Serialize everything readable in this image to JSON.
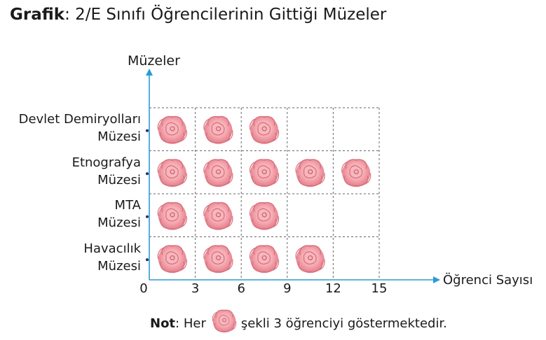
{
  "title": {
    "bold": "Grafik",
    "rest": ": 2/E Sınıfı Öğrencilerinin Gittiği Müzeler"
  },
  "chart_data": {
    "type": "pictograph",
    "ylabel": "Müzeler",
    "xlabel": "Öğrenci Sayısı",
    "categories": [
      [
        "Devlet Demiryolları",
        "Müzesi"
      ],
      [
        "Etnografya",
        "Müzesi"
      ],
      [
        "MTA",
        "Müzesi"
      ],
      [
        "Havacılık",
        "Müzesi"
      ]
    ],
    "values": [
      9,
      15,
      9,
      12
    ],
    "x_ticks": [
      "0",
      "3",
      "6",
      "9",
      "12",
      "15"
    ],
    "xlim": [
      0,
      15
    ],
    "symbol_value": 3,
    "symbol": "rose-icon",
    "grid": "dashed"
  },
  "note": {
    "bold": "Not",
    "before": ": Her",
    "after": "şekli 3 öğrenciyi göstermektedir."
  },
  "colors": {
    "axis": "#2b9ad6",
    "grid": "#666666",
    "rose": "#f29aa3",
    "rose_dark": "#d9717e"
  }
}
